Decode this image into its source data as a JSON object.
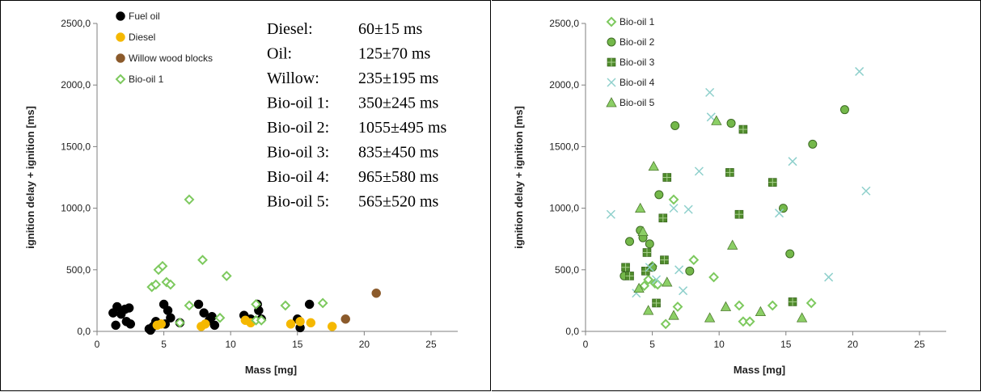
{
  "chart_data": [
    {
      "type": "scatter",
      "xlabel": "Mass [mg]",
      "ylabel": "ignition delay + ignition [ms]",
      "xlim": [
        0,
        27
      ],
      "ylim": [
        0,
        2500
      ],
      "x_ticks": [
        "0",
        "5",
        "10",
        "15",
        "20",
        "25"
      ],
      "y_ticks": [
        "0,0",
        "500,0",
        "1000,0",
        "1500,0",
        "2000,0",
        "2500,0"
      ],
      "legend_position": "top-left",
      "series": [
        {
          "name": "Fuel oil",
          "color": "#000000",
          "marker": "circle-filled",
          "points": [
            [
              1.2,
              150
            ],
            [
              1.5,
              200
            ],
            [
              1.8,
              140
            ],
            [
              2.1,
              180
            ],
            [
              1.4,
              50
            ],
            [
              2.2,
              80
            ],
            [
              2.5,
              60
            ],
            [
              2.4,
              190
            ],
            [
              3.9,
              20
            ],
            [
              4.0,
              10
            ],
            [
              4.2,
              40
            ],
            [
              4.4,
              80
            ],
            [
              5.0,
              220
            ],
            [
              5.1,
              60
            ],
            [
              5.3,
              170
            ],
            [
              5.5,
              110
            ],
            [
              6.2,
              70
            ],
            [
              7.6,
              220
            ],
            [
              8.0,
              150
            ],
            [
              8.4,
              90
            ],
            [
              8.6,
              120
            ],
            [
              8.8,
              50
            ],
            [
              11.0,
              130
            ],
            [
              11.5,
              100
            ],
            [
              12.0,
              220
            ],
            [
              12.1,
              170
            ],
            [
              12.3,
              100
            ],
            [
              15.0,
              100
            ],
            [
              15.2,
              30
            ],
            [
              15.9,
              220
            ]
          ]
        },
        {
          "name": "Diesel",
          "color": "#f5b800",
          "marker": "circle-filled",
          "points": [
            [
              4.5,
              50
            ],
            [
              4.8,
              60
            ],
            [
              7.8,
              40
            ],
            [
              8.1,
              60
            ],
            [
              11.1,
              90
            ],
            [
              11.5,
              70
            ],
            [
              14.5,
              60
            ],
            [
              15.2,
              80
            ],
            [
              16.0,
              70
            ],
            [
              17.6,
              40
            ]
          ]
        },
        {
          "name": "Willow wood blocks",
          "color": "#8b5a2b",
          "marker": "circle-filled",
          "points": [
            [
              18.6,
              100
            ],
            [
              20.9,
              310
            ]
          ]
        },
        {
          "name": "Bio-oil 1",
          "color": "#7dc95e",
          "marker": "diamond-open",
          "points": [
            [
              4.1,
              360
            ],
            [
              4.4,
              380
            ],
            [
              4.6,
              500
            ],
            [
              4.9,
              530
            ],
            [
              5.2,
              400
            ],
            [
              5.5,
              380
            ],
            [
              6.9,
              1070
            ],
            [
              7.9,
              580
            ],
            [
              9.7,
              450
            ],
            [
              6.2,
              70
            ],
            [
              6.9,
              210
            ],
            [
              9.2,
              110
            ],
            [
              11.9,
              220
            ],
            [
              11.9,
              90
            ],
            [
              12.3,
              90
            ],
            [
              14.1,
              210
            ],
            [
              16.9,
              230
            ]
          ]
        }
      ],
      "annotations": [
        [
          "Diesel:",
          "60±15 ms"
        ],
        [
          "Oil:",
          "125±70 ms"
        ],
        [
          "Willow:",
          "235±195 ms"
        ],
        [
          "Bio-oil 1:",
          "350±245 ms"
        ],
        [
          "Bio-oil 2:",
          "1055±495 ms"
        ],
        [
          "Bio-oil 3:",
          "835±450 ms"
        ],
        [
          "Bio-oil 4:",
          "965±580 ms"
        ],
        [
          "Bio-oil 5:",
          "565±520 ms"
        ]
      ]
    },
    {
      "type": "scatter",
      "xlabel": "Mass [mg]",
      "ylabel": "ignition delay + ignition [ms]",
      "xlim": [
        0,
        27
      ],
      "ylim": [
        0,
        2500
      ],
      "x_ticks": [
        "0",
        "5",
        "10",
        "15",
        "20",
        "25"
      ],
      "y_ticks": [
        "0,0",
        "500,0",
        "1000,0",
        "1500,0",
        "2000,0",
        "2500,0"
      ],
      "legend_position": "top-left",
      "series": [
        {
          "name": "Bio-oil 1",
          "color": "#7dc95e",
          "marker": "diamond-open",
          "points": [
            [
              4.4,
              370
            ],
            [
              4.7,
              420
            ],
            [
              5.0,
              530
            ],
            [
              5.2,
              390
            ],
            [
              5.4,
              380
            ],
            [
              6.0,
              60
            ],
            [
              6.6,
              1070
            ],
            [
              6.9,
              200
            ],
            [
              8.1,
              580
            ],
            [
              9.6,
              440
            ],
            [
              11.5,
              210
            ],
            [
              11.8,
              80
            ],
            [
              12.3,
              80
            ],
            [
              14.0,
              210
            ],
            [
              16.9,
              230
            ]
          ]
        },
        {
          "name": "Bio-oil 2",
          "color": "#74b84a",
          "marker": "circle",
          "points": [
            [
              2.9,
              450
            ],
            [
              3.3,
              730
            ],
            [
              4.1,
              820
            ],
            [
              4.3,
              760
            ],
            [
              4.8,
              710
            ],
            [
              5.0,
              520
            ],
            [
              5.5,
              1110
            ],
            [
              7.8,
              490
            ],
            [
              6.7,
              1670
            ],
            [
              10.9,
              1690
            ],
            [
              14.8,
              1000
            ],
            [
              15.3,
              630
            ],
            [
              17.0,
              1520
            ],
            [
              19.4,
              1800
            ]
          ]
        },
        {
          "name": "Bio-oil 3",
          "color": "#4f8a2b",
          "marker": "square",
          "points": [
            [
              3.0,
              520
            ],
            [
              3.3,
              450
            ],
            [
              4.5,
              490
            ],
            [
              4.6,
              640
            ],
            [
              5.3,
              230
            ],
            [
              5.8,
              920
            ],
            [
              5.9,
              580
            ],
            [
              6.1,
              1250
            ],
            [
              10.8,
              1290
            ],
            [
              11.5,
              950
            ],
            [
              11.8,
              1640
            ],
            [
              14.0,
              1210
            ],
            [
              15.5,
              240
            ]
          ]
        },
        {
          "name": "Bio-oil 4",
          "color": "#8fd0cc",
          "marker": "x",
          "points": [
            [
              1.9,
              950
            ],
            [
              3.8,
              310
            ],
            [
              4.8,
              520
            ],
            [
              5.3,
              420
            ],
            [
              6.6,
              1000
            ],
            [
              7.0,
              500
            ],
            [
              7.3,
              330
            ],
            [
              7.7,
              990
            ],
            [
              8.5,
              1300
            ],
            [
              9.3,
              1940
            ],
            [
              9.4,
              1740
            ],
            [
              14.5,
              960
            ],
            [
              15.5,
              1380
            ],
            [
              18.2,
              440
            ],
            [
              20.5,
              2110
            ],
            [
              21.0,
              1140
            ]
          ]
        },
        {
          "name": "Bio-oil 5",
          "color": "#8ccf66",
          "marker": "triangle",
          "points": [
            [
              4.0,
              350
            ],
            [
              4.1,
              1000
            ],
            [
              4.3,
              810
            ],
            [
              4.7,
              170
            ],
            [
              5.1,
              1340
            ],
            [
              6.1,
              400
            ],
            [
              6.6,
              130
            ],
            [
              9.3,
              110
            ],
            [
              9.8,
              1710
            ],
            [
              10.5,
              200
            ],
            [
              11.0,
              700
            ],
            [
              13.1,
              160
            ],
            [
              16.2,
              110
            ]
          ]
        }
      ]
    }
  ]
}
